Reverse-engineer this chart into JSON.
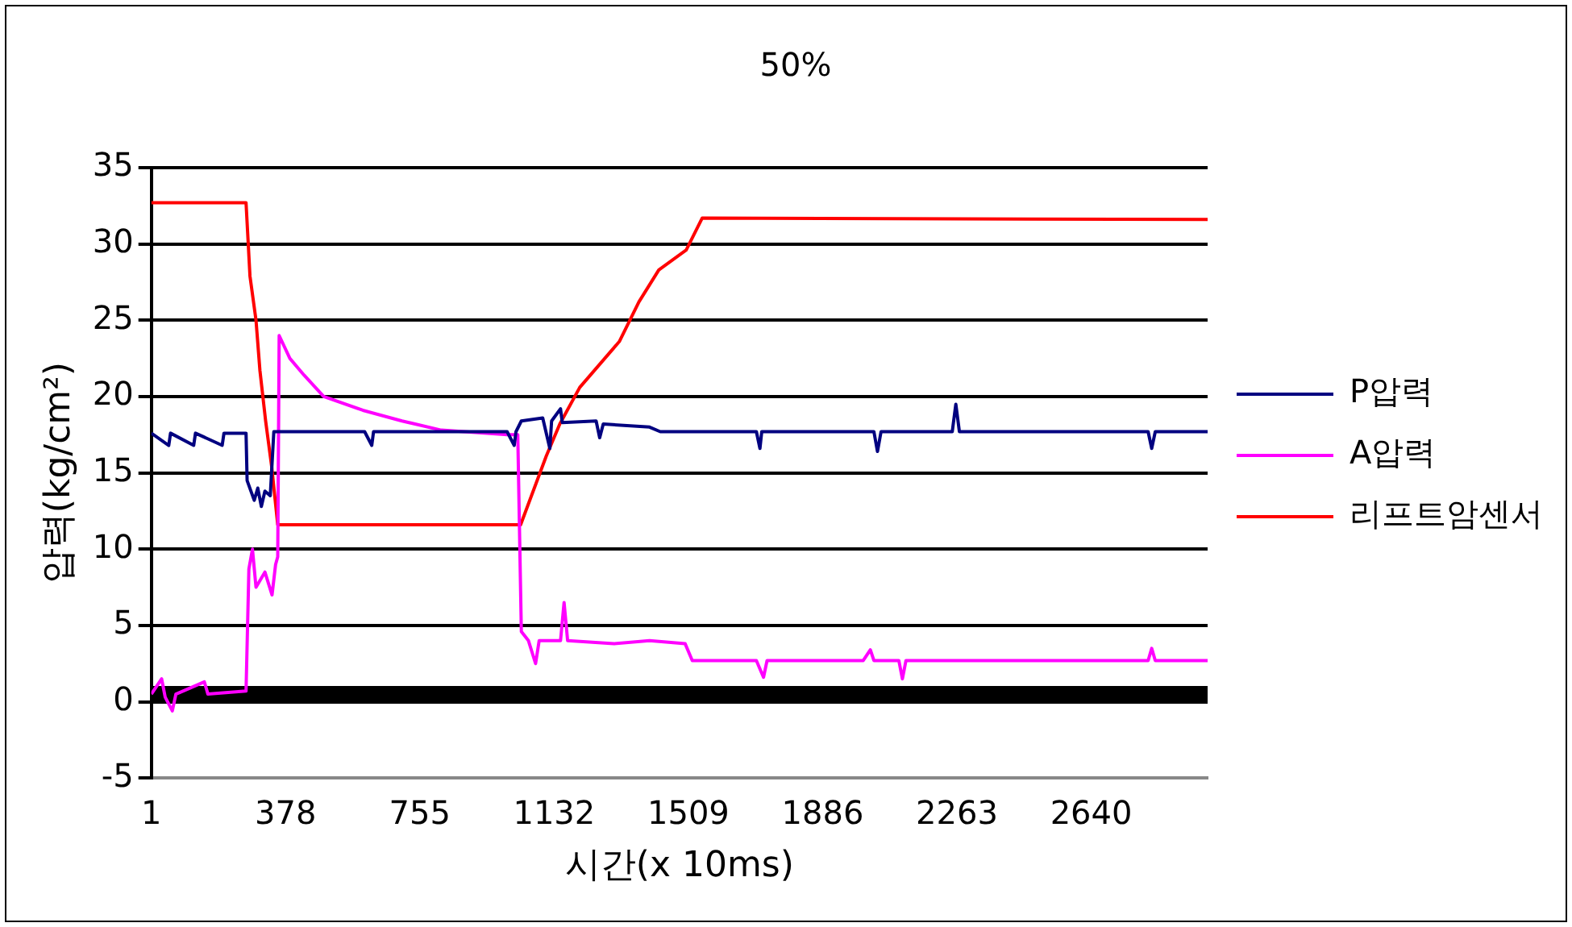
{
  "chart_data": {
    "type": "line",
    "title": "50%",
    "xlabel": "시간(x 10ms)",
    "ylabel": "압력(kg/cm²)",
    "xlim": [
      1,
      2967
    ],
    "xticks": [
      1,
      378,
      755,
      1132,
      1509,
      1886,
      2263,
      2640
    ],
    "ylim": [
      -5,
      35
    ],
    "yticks": [
      -5,
      0,
      5,
      10,
      15,
      20,
      25,
      30,
      35
    ],
    "grid": "y",
    "legend": "right",
    "marker": "none",
    "line_style": "solid",
    "series": [
      {
        "name": "P압력",
        "color": "#000080",
        "x": [
          1,
          50,
          55,
          120,
          125,
          200,
          205,
          267,
          270,
          290,
          300,
          310,
          320,
          335,
          345,
          600,
          620,
          625,
          1000,
          1020,
          1025,
          1040,
          1100,
          1120,
          1125,
          1150,
          1155,
          1250,
          1260,
          1270,
          1400,
          1430,
          1700,
          1710,
          1715,
          2030,
          2040,
          2050,
          2250,
          2260,
          2270,
          2800,
          2810,
          2820,
          2967
        ],
        "values": [
          17.6,
          16.8,
          17.6,
          16.8,
          17.6,
          16.8,
          17.6,
          17.6,
          14.5,
          13.2,
          14,
          12.8,
          13.8,
          13.5,
          17.7,
          17.7,
          16.8,
          17.7,
          17.7,
          16.8,
          17.7,
          18.4,
          18.6,
          16.6,
          18.4,
          19.2,
          18.3,
          18.4,
          17.3,
          18.2,
          18,
          17.7,
          17.7,
          16.6,
          17.7,
          17.7,
          16.4,
          17.7,
          17.7,
          19.5,
          17.7,
          17.7,
          16.6,
          17.7,
          17.7
        ]
      },
      {
        "name": "A압력",
        "color": "#ff00ff",
        "x": [
          1,
          30,
          40,
          60,
          70,
          150,
          160,
          267,
          275,
          285,
          295,
          320,
          340,
          350,
          356,
          360,
          390,
          430,
          485,
          595,
          705,
          815,
          1000,
          1030,
          1040,
          1060,
          1080,
          1090,
          1150,
          1160,
          1170,
          1300,
          1400,
          1500,
          1520,
          1700,
          1720,
          1730,
          2000,
          2020,
          2030,
          2100,
          2110,
          2120,
          2800,
          2810,
          2820,
          2967
        ],
        "values": [
          0.5,
          1.5,
          0.3,
          -0.6,
          0.5,
          1.3,
          0.5,
          0.7,
          8.7,
          10,
          7.5,
          8.5,
          7,
          9,
          9.5,
          24,
          22.5,
          21.4,
          20,
          19.1,
          18.4,
          17.8,
          17.5,
          17.5,
          4.6,
          4,
          2.5,
          4,
          4,
          6.5,
          4,
          3.8,
          4,
          3.8,
          2.7,
          2.7,
          1.6,
          2.7,
          2.7,
          3.4,
          2.7,
          2.7,
          1.5,
          2.7,
          2.7,
          3.5,
          2.7,
          2.7
        ]
      },
      {
        "name": "리프트암센서",
        "color": "#ff0000",
        "x": [
          1,
          267,
          278,
          295,
          306,
          322,
          339,
          356,
          1038,
          1110,
          1148,
          1204,
          1315,
          1370,
          1426,
          1503,
          1548,
          2967
        ],
        "values": [
          32.7,
          32.7,
          27.9,
          25,
          21.7,
          18.4,
          15.4,
          11.6,
          11.6,
          16.1,
          18.2,
          20.6,
          23.6,
          26.2,
          28.3,
          29.6,
          31.7,
          31.6
        ]
      },
      {
        "color": "#000000",
        "x": [
          1,
          2967
        ],
        "values": [
          0.5,
          0.5
        ]
      }
    ]
  }
}
